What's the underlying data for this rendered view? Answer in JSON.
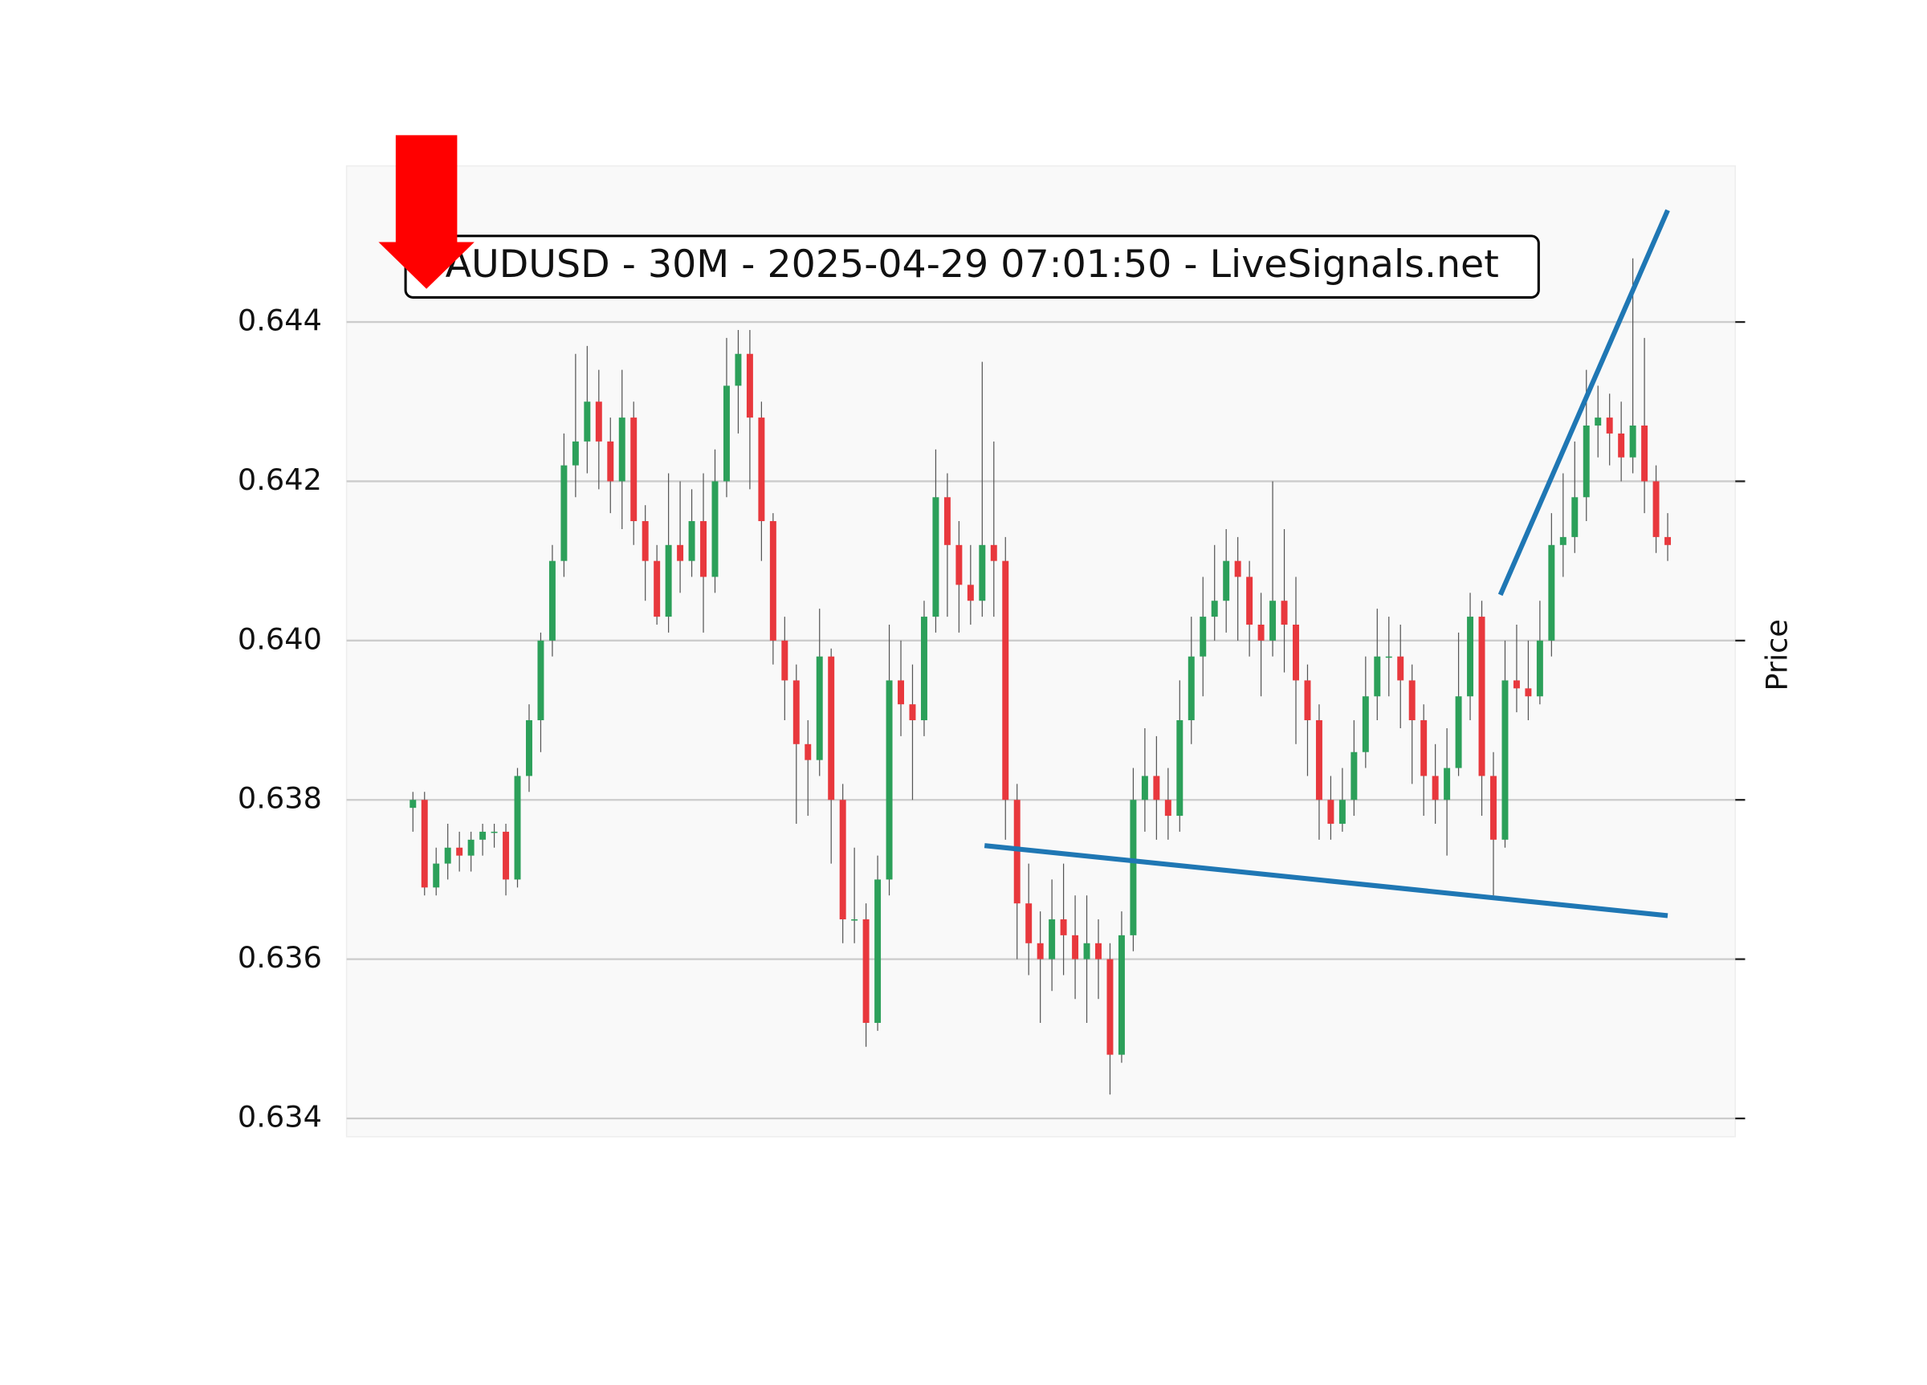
{
  "chart_data": {
    "type": "candlestick",
    "title": "AUDUSD - 30M - 2025-04-29 07:01:50 - LiveSignals.net",
    "ylabel": "Price",
    "ylim": [
      0.63377,
      0.64596
    ],
    "yticks": [
      0.634,
      0.636,
      0.638,
      {
        "value": 0.64,
        "label": "0.640"
      },
      0.642,
      0.644
    ],
    "grid": true,
    "up_color": "#2ca05a",
    "down_color": "#e8383d",
    "wick_color": "#555555",
    "open": [
      0.6379,
      0.638,
      0.6369,
      0.6372,
      0.6374,
      0.6373,
      0.6375,
      0.6376,
      0.6376,
      0.637,
      0.6383,
      0.639,
      0.64,
      0.641,
      0.6422,
      0.6425,
      0.643,
      0.6425,
      0.642,
      0.6428,
      0.6415,
      0.641,
      0.6403,
      0.6412,
      0.641,
      0.6415,
      0.6408,
      0.642,
      0.6432,
      0.6436,
      0.6428,
      0.6415,
      0.64,
      0.6395,
      0.6387,
      0.6385,
      0.6398,
      0.638,
      0.6365,
      0.6365,
      0.6352,
      0.637,
      0.6395,
      0.6392,
      0.639,
      0.6403,
      0.6418,
      0.6412,
      0.6407,
      0.6405,
      0.6412,
      0.641,
      0.638,
      0.6367,
      0.6362,
      0.636,
      0.6365,
      0.6363,
      0.636,
      0.6362,
      0.636,
      0.6348,
      0.6363,
      0.638,
      0.6383,
      0.638,
      0.6378,
      0.639,
      0.6398,
      0.6403,
      0.6405,
      0.641,
      0.6408,
      0.6402,
      0.64,
      0.6405,
      0.6402,
      0.6395,
      0.639,
      0.638,
      0.6377,
      0.638,
      0.6386,
      0.6393,
      0.6398,
      0.6398,
      0.6395,
      0.639,
      0.6383,
      0.638,
      0.6384,
      0.6393,
      0.6403,
      0.6383,
      0.6375,
      0.6395,
      0.6394,
      0.6393,
      0.64,
      0.6412,
      0.6413,
      0.6418,
      0.6427,
      0.6428,
      0.6426,
      0.6423,
      0.6427,
      0.642,
      0.6413
    ],
    "high": [
      0.6381,
      0.6381,
      0.6374,
      0.6377,
      0.6376,
      0.6376,
      0.6377,
      0.6377,
      0.6377,
      0.6384,
      0.6392,
      0.6401,
      0.6412,
      0.6426,
      0.6436,
      0.6437,
      0.6434,
      0.6428,
      0.6434,
      0.643,
      0.6417,
      0.6412,
      0.6421,
      0.642,
      0.6419,
      0.6421,
      0.6424,
      0.6438,
      0.6439,
      0.6439,
      0.643,
      0.6416,
      0.6403,
      0.6397,
      0.639,
      0.6404,
      0.6399,
      0.6382,
      0.6374,
      0.6367,
      0.6373,
      0.6402,
      0.64,
      0.6397,
      0.6405,
      0.6424,
      0.6421,
      0.6415,
      0.6412,
      0.6435,
      0.6425,
      0.6413,
      0.6382,
      0.6372,
      0.6366,
      0.637,
      0.6372,
      0.6368,
      0.6368,
      0.6365,
      0.6362,
      0.6366,
      0.6384,
      0.6389,
      0.6388,
      0.6384,
      0.6395,
      0.6403,
      0.6408,
      0.6412,
      0.6414,
      0.6413,
      0.641,
      0.6406,
      0.642,
      0.6414,
      0.6408,
      0.6397,
      0.6392,
      0.6383,
      0.6384,
      0.639,
      0.6398,
      0.6404,
      0.6403,
      0.6402,
      0.6397,
      0.6392,
      0.6387,
      0.6389,
      0.6401,
      0.6406,
      0.6405,
      0.6386,
      0.64,
      0.6402,
      0.64,
      0.6405,
      0.6416,
      0.6421,
      0.6425,
      0.6434,
      0.6432,
      0.6431,
      0.643,
      0.6448,
      0.6438,
      0.6422,
      0.6416
    ],
    "low": [
      0.6376,
      0.6368,
      0.6368,
      0.637,
      0.6371,
      0.6371,
      0.6373,
      0.6374,
      0.6368,
      0.6369,
      0.6381,
      0.6386,
      0.6398,
      0.6408,
      0.6418,
      0.6421,
      0.6419,
      0.6416,
      0.6414,
      0.6412,
      0.6405,
      0.6402,
      0.6401,
      0.6406,
      0.6408,
      0.6401,
      0.6406,
      0.6418,
      0.6426,
      0.6419,
      0.641,
      0.6397,
      0.639,
      0.6377,
      0.6378,
      0.6383,
      0.6372,
      0.6362,
      0.6362,
      0.6349,
      0.6351,
      0.6368,
      0.6388,
      0.638,
      0.6388,
      0.6401,
      0.6403,
      0.6401,
      0.6402,
      0.6403,
      0.6403,
      0.6375,
      0.636,
      0.6358,
      0.6352,
      0.6356,
      0.6358,
      0.6355,
      0.6352,
      0.6355,
      0.6343,
      0.6347,
      0.6361,
      0.6376,
      0.6375,
      0.6375,
      0.6376,
      0.6387,
      0.6393,
      0.64,
      0.6401,
      0.64,
      0.6398,
      0.6393,
      0.6398,
      0.6396,
      0.6387,
      0.6383,
      0.6375,
      0.6375,
      0.6376,
      0.6378,
      0.6384,
      0.639,
      0.6393,
      0.6389,
      0.6382,
      0.6378,
      0.6377,
      0.6373,
      0.6383,
      0.639,
      0.6378,
      0.6368,
      0.6374,
      0.6391,
      0.639,
      0.6392,
      0.6398,
      0.6408,
      0.6411,
      0.6415,
      0.6423,
      0.6422,
      0.642,
      0.6421,
      0.6416,
      0.6411,
      0.641
    ],
    "close": [
      0.638,
      0.6369,
      0.6372,
      0.6374,
      0.6373,
      0.6375,
      0.6376,
      0.6376,
      0.637,
      0.6383,
      0.639,
      0.64,
      0.641,
      0.6422,
      0.6425,
      0.643,
      0.6425,
      0.642,
      0.6428,
      0.6415,
      0.641,
      0.6403,
      0.6412,
      0.641,
      0.6415,
      0.6408,
      0.642,
      0.6432,
      0.6436,
      0.6428,
      0.6415,
      0.64,
      0.6395,
      0.6387,
      0.6385,
      0.6398,
      0.638,
      0.6365,
      0.6365,
      0.6352,
      0.637,
      0.6395,
      0.6392,
      0.639,
      0.6403,
      0.6418,
      0.6412,
      0.6407,
      0.6405,
      0.6412,
      0.641,
      0.638,
      0.6367,
      0.6362,
      0.636,
      0.6365,
      0.6363,
      0.636,
      0.6362,
      0.636,
      0.6348,
      0.6363,
      0.638,
      0.6383,
      0.638,
      0.6378,
      0.639,
      0.6398,
      0.6403,
      0.6405,
      0.641,
      0.6408,
      0.6402,
      0.64,
      0.6405,
      0.6402,
      0.6395,
      0.639,
      0.638,
      0.6377,
      0.638,
      0.6386,
      0.6393,
      0.6398,
      0.6398,
      0.6395,
      0.639,
      0.6383,
      0.638,
      0.6384,
      0.6393,
      0.6403,
      0.6383,
      0.6375,
      0.6395,
      0.6394,
      0.6393,
      0.64,
      0.6412,
      0.6413,
      0.6418,
      0.6427,
      0.6428,
      0.6426,
      0.6423,
      0.6427,
      0.642,
      0.6413,
      0.6412
    ],
    "trendlines": [
      {
        "color": "#1f77b4",
        "x": [
          49.2,
          108
        ],
        "values": [
          0.637426,
          0.636546
        ]
      },
      {
        "color": "#1f77b4",
        "x": [
          93.6,
          108
        ],
        "values": [
          0.640574,
          0.645404
        ]
      }
    ]
  }
}
